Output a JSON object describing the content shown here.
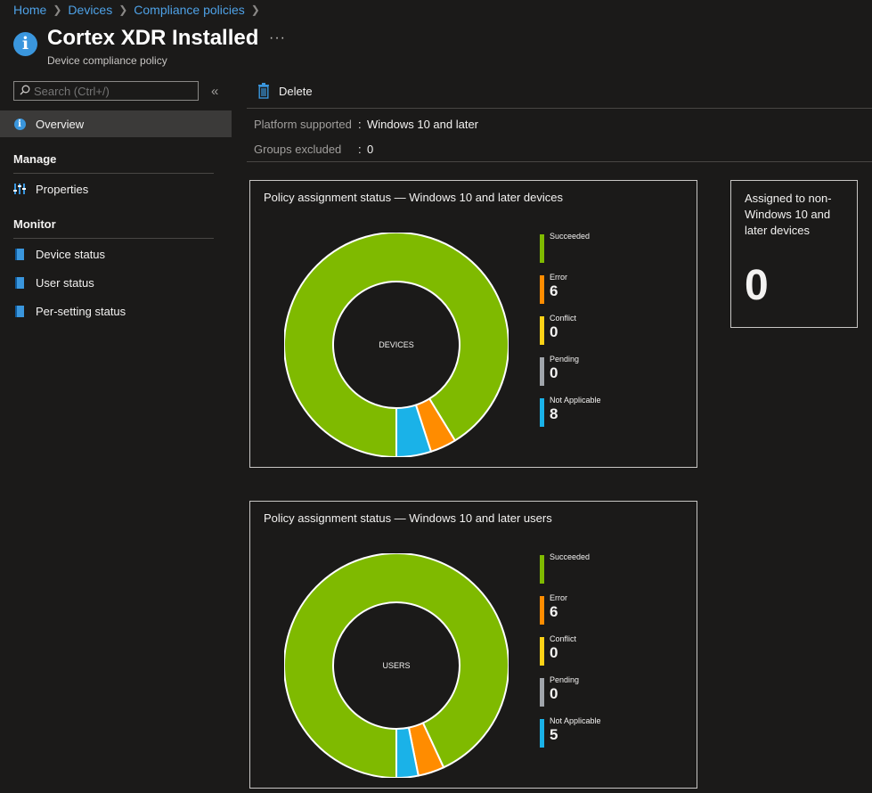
{
  "breadcrumb": [
    "Home",
    "Devices",
    "Compliance policies"
  ],
  "header": {
    "title": "Cortex XDR Installed",
    "subtitle": "Device compliance policy",
    "more": "···"
  },
  "sidebar": {
    "search_placeholder": "Search (Ctrl+/)",
    "collapse": "«",
    "overview": "Overview",
    "manage_title": "Manage",
    "properties": "Properties",
    "monitor_title": "Monitor",
    "device_status": "Device status",
    "user_status": "User status",
    "per_setting_status": "Per-setting status"
  },
  "toolbar": {
    "delete_label": "Delete"
  },
  "essentials": {
    "platform_label": "Platform supported",
    "platform_value": "Windows 10 and later",
    "groups_label": "Groups excluded",
    "groups_value": "0"
  },
  "colors": {
    "succeeded": "#7fba00",
    "error": "#ff8c00",
    "conflict": "#fcd116",
    "pending": "#a0a5ab",
    "not_applicable": "#1ab2e8"
  },
  "devices_chart": {
    "title": "Policy assignment status — Windows 10 and later devices",
    "center": "DEVICES",
    "legend": [
      {
        "name": "Succeeded",
        "value": ""
      },
      {
        "name": "Error",
        "value": "6"
      },
      {
        "name": "Conflict",
        "value": "0"
      },
      {
        "name": "Pending",
        "value": "0"
      },
      {
        "name": "Not Applicable",
        "value": "8"
      }
    ]
  },
  "users_chart": {
    "title": "Policy assignment status — Windows 10 and later users",
    "center": "USERS",
    "legend": [
      {
        "name": "Succeeded",
        "value": ""
      },
      {
        "name": "Error",
        "value": "6"
      },
      {
        "name": "Conflict",
        "value": "0"
      },
      {
        "name": "Pending",
        "value": "0"
      },
      {
        "name": "Not Applicable",
        "value": "5"
      }
    ]
  },
  "non_windows": {
    "title": "Assigned to non-Windows 10 and later devices",
    "value": "0"
  },
  "chart_data": [
    {
      "type": "pie",
      "title": "Policy assignment status — Windows 10 and later devices",
      "categories": [
        "Succeeded",
        "Error",
        "Conflict",
        "Pending",
        "Not Applicable"
      ],
      "values": [
        146,
        6,
        0,
        0,
        8
      ]
    },
    {
      "type": "pie",
      "title": "Policy assignment status — Windows 10 and later users",
      "categories": [
        "Succeeded",
        "Error",
        "Conflict",
        "Pending",
        "Not Applicable"
      ],
      "values": [
        148,
        6,
        0,
        0,
        5
      ]
    }
  ]
}
